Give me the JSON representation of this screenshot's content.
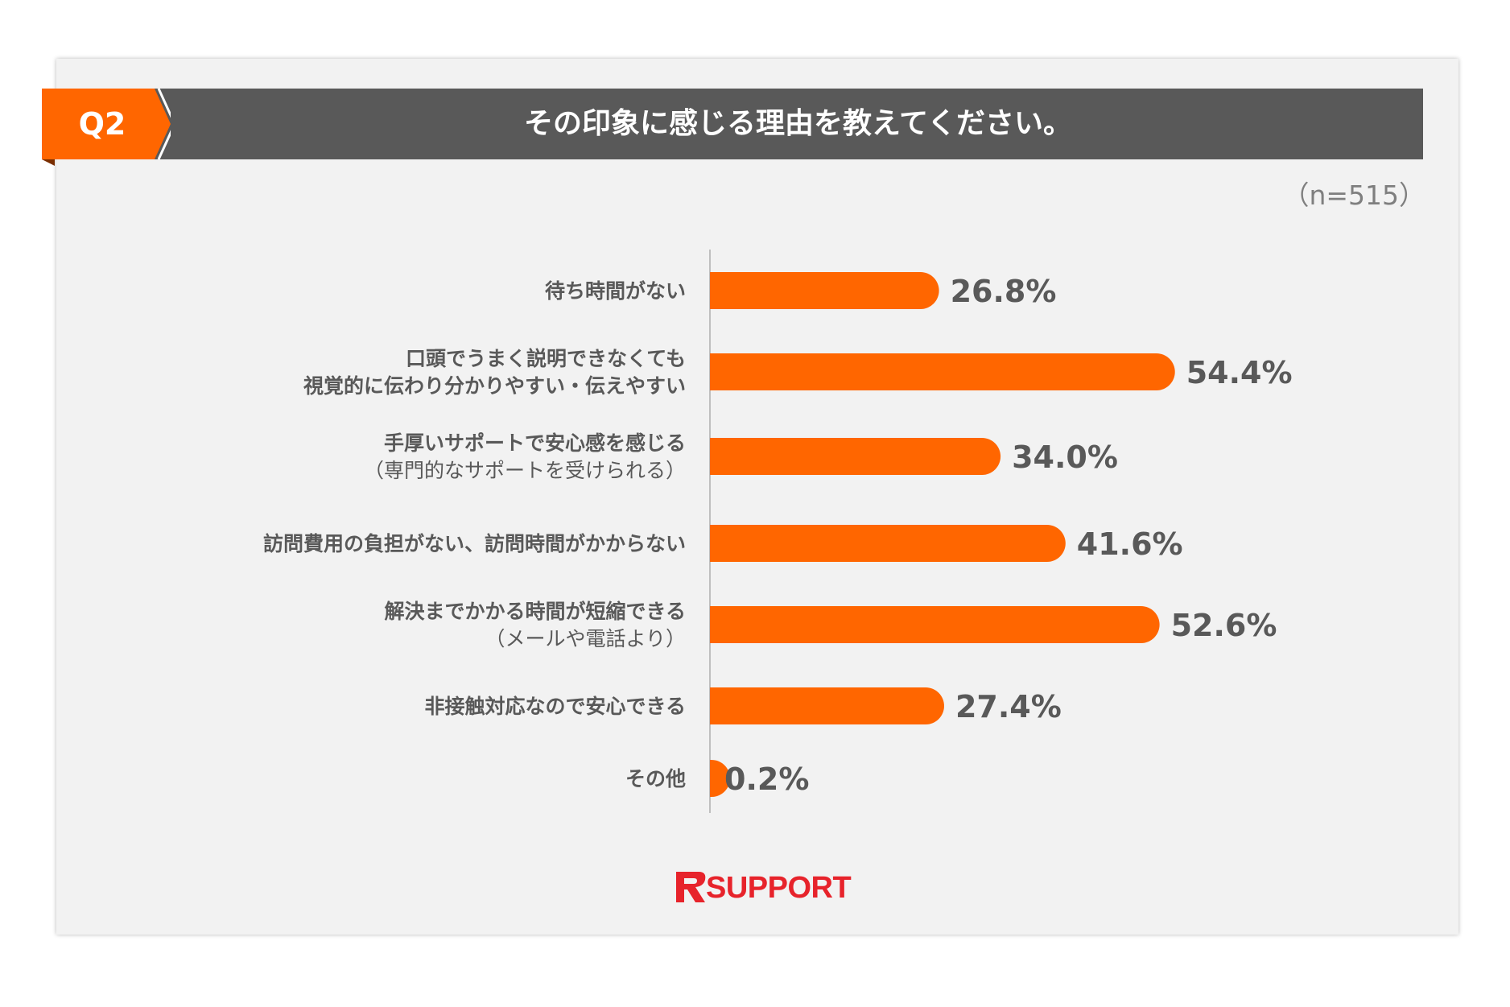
{
  "header": {
    "q_label": "Q2",
    "title": "その印象に感じる理由を教えてください。",
    "sample_size": "（n=515）"
  },
  "colors": {
    "bar": "#ff6600",
    "header_bg": "#595959",
    "q_tab": "#ff6600",
    "logo": "#e7232b",
    "label_text": "#595959"
  },
  "chart_data": {
    "type": "bar",
    "orientation": "horizontal",
    "categories": [
      [
        "待ち時間がない"
      ],
      [
        "口頭でうまく説明できなくても",
        "視覚的に伝わり分かりやすい・伝えやすい"
      ],
      [
        "手厚いサポートで安心感を感じる",
        "（専門的なサポートを受けられる）"
      ],
      [
        "訪問費用の負担がない、訪問時間がかからない"
      ],
      [
        "解決までかかる時間が短縮できる",
        "（メールや電話より）"
      ],
      [
        "非接触対応なので安心できる"
      ],
      [
        "その他"
      ]
    ],
    "values": [
      26.8,
      54.4,
      34.0,
      41.6,
      52.6,
      27.4,
      0.2
    ],
    "value_labels": [
      "26.8%",
      "54.4%",
      "34.0%",
      "41.6%",
      "52.6%",
      "27.4%",
      "0.2%"
    ],
    "xlim": [
      0,
      100
    ],
    "grid": false,
    "legend": "none"
  },
  "logo": {
    "text": "SUPPORT",
    "icon": "r-logo-icon"
  }
}
